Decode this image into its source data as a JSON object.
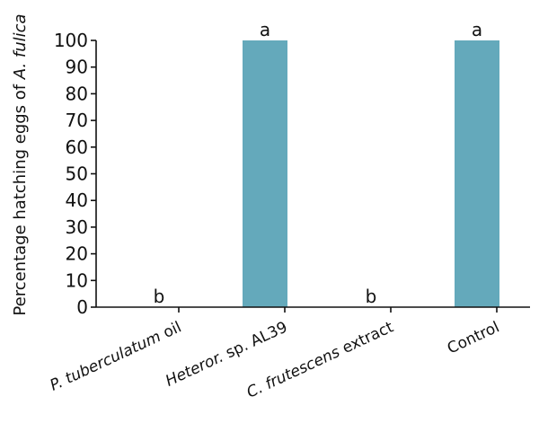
{
  "chart_data": {
    "type": "bar",
    "ylabel_prefix": "Percentage hatching eggs of ",
    "ylabel_italic": "A. fulica",
    "categories": [
      {
        "parts": [
          {
            "text": "P. tuberculatum",
            "italic": true
          },
          {
            "text": " oil",
            "italic": false
          }
        ]
      },
      {
        "parts": [
          {
            "text": "Heteror.",
            "italic": true
          },
          {
            "text": " sp. AL39",
            "italic": false
          }
        ]
      },
      {
        "parts": [
          {
            "text": "C. frutescens",
            "italic": true
          },
          {
            "text": " extract",
            "italic": false
          }
        ]
      },
      {
        "parts": [
          {
            "text": "Control",
            "italic": false
          }
        ]
      }
    ],
    "values": [
      0,
      100,
      0,
      100
    ],
    "annotations": [
      "b",
      "a",
      "b",
      "a"
    ],
    "ylim": [
      0,
      100
    ],
    "yticks": [
      0,
      10,
      20,
      30,
      40,
      50,
      60,
      70,
      80,
      90,
      100
    ],
    "bar_color": "#64a9bb",
    "axis_color": "#111111",
    "grid": false,
    "legend": "none"
  }
}
